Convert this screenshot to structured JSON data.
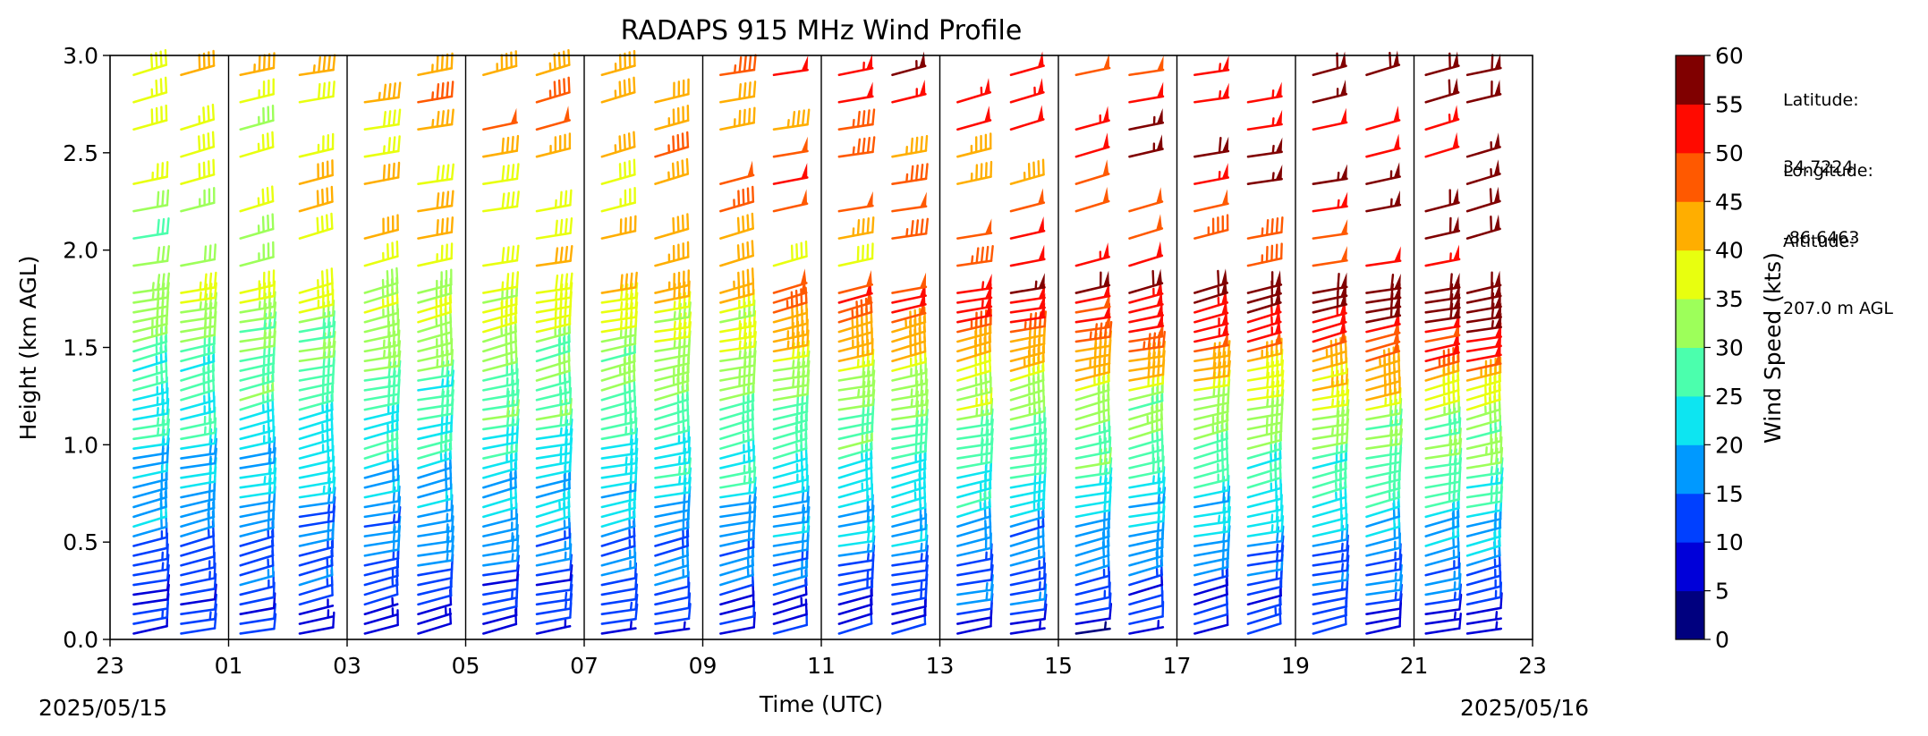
{
  "chart_data": {
    "type": "wind-barbs",
    "title": "RADAPS 915 MHz Wind Profile",
    "xlabel": "Time (UTC)",
    "ylabel": "Height (km AGL)",
    "xlim": [
      23,
      47
    ],
    "ylim": [
      0.0,
      3.0
    ],
    "xticks": [
      23,
      25,
      27,
      29,
      31,
      33,
      35,
      37,
      39,
      41,
      43,
      45,
      47
    ],
    "xtick_labels": [
      "23",
      "01",
      "03",
      "05",
      "07",
      "09",
      "11",
      "13",
      "15",
      "17",
      "19",
      "21",
      "23"
    ],
    "yticks": [
      0.0,
      0.5,
      1.0,
      1.5,
      2.0,
      2.5,
      3.0
    ],
    "ytick_labels": [
      "0.0",
      "0.5",
      "1.0",
      "1.5",
      "2.0",
      "2.5",
      "3.0"
    ],
    "date_start_label": "2025/05/15",
    "date_end_label": "2025/05/16",
    "profile_times": [
      23.4,
      24.2,
      25.2,
      26.2,
      27.3,
      28.2,
      29.3,
      30.2,
      31.3,
      32.2,
      33.3,
      34.2,
      35.3,
      36.2,
      37.3,
      38.2,
      39.3,
      40.2,
      41.3,
      42.2,
      43.3,
      44.2,
      45.2,
      45.9
    ],
    "vertical_gridlines": [
      25,
      27,
      29,
      31,
      33,
      35,
      37,
      39,
      41,
      43,
      45
    ],
    "colorbar": {
      "label": "Wind Speed (kts)",
      "ticks": [
        0,
        5,
        10,
        15,
        20,
        25,
        30,
        35,
        40,
        45,
        50,
        55,
        60
      ],
      "tick_labels": [
        "0",
        "5",
        "10",
        "15",
        "20",
        "25",
        "30",
        "35",
        "40",
        "45",
        "50",
        "55",
        "60"
      ],
      "colors": [
        "#00007f",
        "#0000d9",
        "#0040ff",
        "#0099ff",
        "#0de5f1",
        "#4bffad",
        "#9dff5a",
        "#e8ff0f",
        "#ffae00",
        "#ff5900",
        "#ff0a00",
        "#800000"
      ],
      "cmap": "jet"
    },
    "site": {
      "latitude_label": "Latitude:",
      "latitude": "34.7224",
      "longitude_label": "Longitude:",
      "longitude": "-86.6463",
      "altitude_label": "Altitude:",
      "altitude": "207.0 m AGL"
    }
  }
}
